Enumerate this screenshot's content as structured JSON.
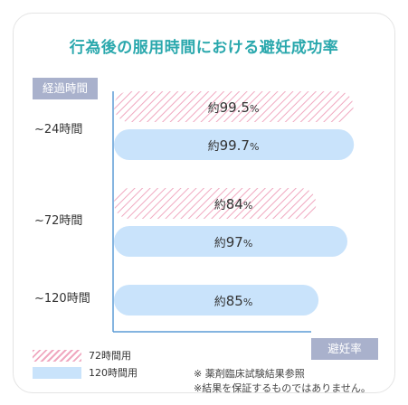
{
  "title": "行為後の服用時間における避妊成功率",
  "y_tag": "経過時間",
  "x_tag": "避妊率",
  "colors": {
    "title": "#2aa8ad",
    "tag": "#a9b1cc",
    "series_72h": "#f0a8c0",
    "series_120h": "#c9e3fb",
    "axis": "#5b9bd5"
  },
  "chart_data": {
    "type": "bar",
    "orientation": "horizontal",
    "categories": [
      "~24時間",
      "~72時間",
      "~120時間"
    ],
    "series": [
      {
        "name": "72時間用",
        "fill": "hatched",
        "values": [
          99.5,
          84,
          null
        ],
        "labels": [
          "約99.5%",
          "約84%",
          ""
        ]
      },
      {
        "name": "120時間用",
        "fill": "solid",
        "values": [
          99.7,
          97,
          85
        ],
        "labels": [
          "約99.7%",
          "約97%",
          "約85%"
        ]
      }
    ],
    "xlim": [
      0,
      100
    ],
    "grid": false
  },
  "notes": [
    "※ 薬剤臨床試験結果参照",
    "※結果を保証するものではありません。"
  ]
}
